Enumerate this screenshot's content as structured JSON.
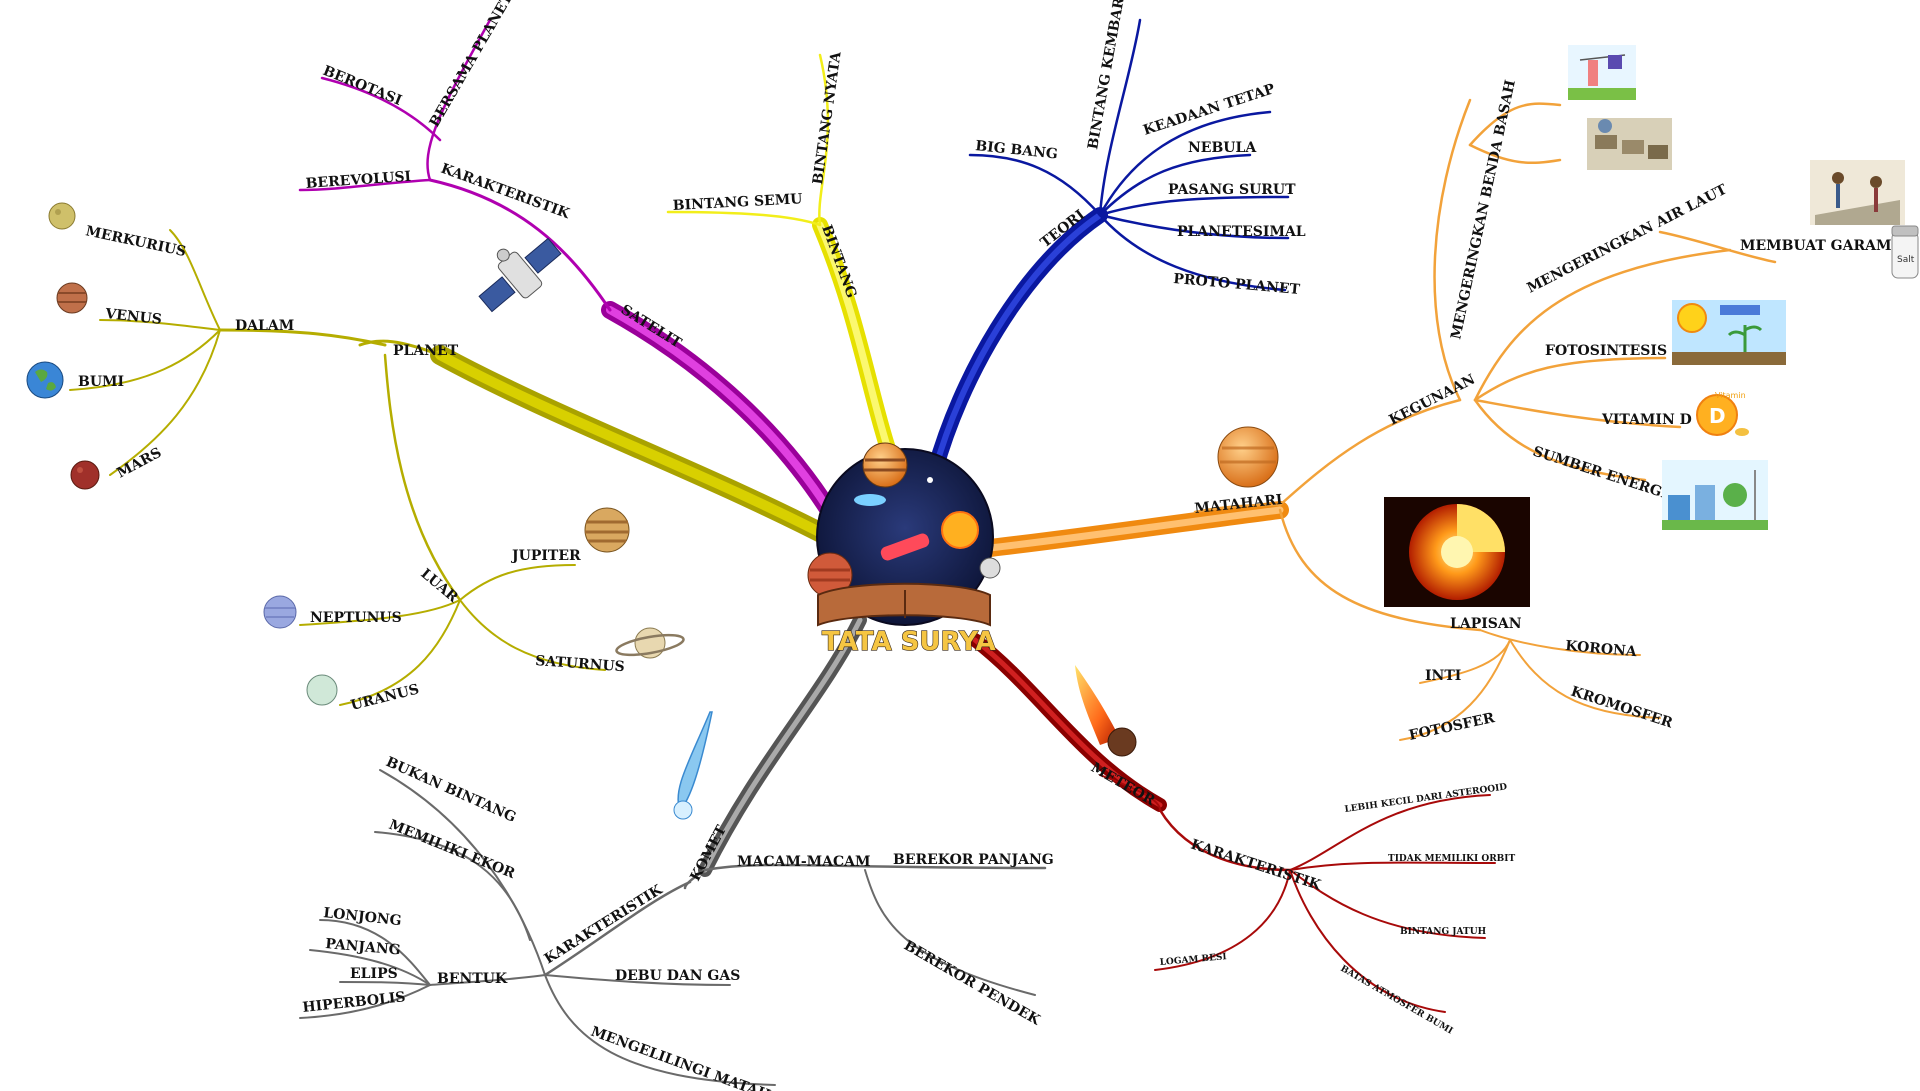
{
  "title": "TATA SURYA",
  "colors": {
    "planet": "#b5ad00",
    "satelit": "#b000b0",
    "bintang": "#f2ee1a",
    "teori": "#0a18a0",
    "matahari": "#f2a23a",
    "meteor": "#a80a0a",
    "komet": "#6a6a6a"
  },
  "branches": {
    "planet": {
      "label": "PLANET",
      "dalam": {
        "label": "DALAM",
        "items": [
          "MERKURIUS",
          "VENUS",
          "BUMI",
          "MARS"
        ]
      },
      "luar": {
        "label": "LUAR",
        "items": [
          "JUPITER",
          "NEPTUNUS",
          "SATURNUS",
          "URANUS"
        ]
      }
    },
    "satelit": {
      "label": "SATELIT",
      "karakteristik": {
        "label": "KARAKTERISTIK",
        "items": [
          "BEREVOLUSI",
          "BEROTASI",
          "BERSAMA PLANET"
        ]
      }
    },
    "bintang": {
      "label": "BINTANG",
      "items": [
        "BINTANG SEMU",
        "BINTANG NYATA"
      ]
    },
    "teori": {
      "label": "TEORI",
      "items": [
        "BIG BANG",
        "BINTANG KEMBAR",
        "KEADAAN TETAP",
        "NEBULA",
        "PASANG SURUT",
        "PLANETESIMAL",
        "PROTO PLANET"
      ]
    },
    "matahari": {
      "label": "MATAHARI",
      "kegunaan": {
        "label": "KEGUNAAN",
        "items": [
          "MENGERINGKAN BENDA BASAH",
          "MENGERINGKAN AIR LAUT",
          "FOTOSINTESIS",
          "VITAMIN D",
          "SUMBER ENERGI"
        ],
        "membuat_garam": "MEMBUAT GARAM",
        "salt_label": "Salt",
        "vitamin_tag": "Vitamin"
      },
      "lapisan": {
        "label": "LAPISAN",
        "items": [
          "KORONA",
          "INTI",
          "FOTOSFER",
          "KROMOSFER"
        ]
      }
    },
    "meteor": {
      "label": "METEOR",
      "karakteristik": {
        "label": "KARAKTERISTIK",
        "items": [
          "LEBIH KECIL DARI ASTEROOID",
          "TIDAK MEMILIKI ORBIT",
          "BINTANG JATUH",
          "BATAS ATMOSFER BUMI",
          "LOGAM BESI"
        ]
      }
    },
    "komet": {
      "label": "KOMET",
      "macam": {
        "label": "MACAM-MACAM",
        "items": [
          "BEREKOR PANJANG",
          "BEREKOR PENDEK"
        ]
      },
      "karakteristik": {
        "label": "KARAKTERISTIK",
        "items": [
          "BUKAN BINTANG",
          "MEMILIKI EKOR",
          "DEBU DAN GAS",
          "MENGELILINGI MATAHARI"
        ],
        "bentuk": {
          "label": "BENTUK",
          "items": [
            "LONJONG",
            "PANJANG",
            "ELIPS",
            "HIPERBOLIS"
          ]
        }
      }
    }
  }
}
